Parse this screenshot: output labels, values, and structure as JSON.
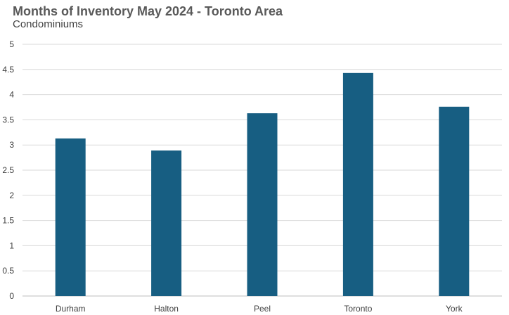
{
  "chart_data": {
    "type": "bar",
    "title": "Months of Inventory May 2024 - Toronto Area",
    "subtitle": "Condominiums",
    "categories": [
      "Durham",
      "Halton",
      "Peel",
      "Toronto",
      "York"
    ],
    "values": [
      3.13,
      2.89,
      3.63,
      4.43,
      3.76
    ],
    "ylim": [
      0,
      5
    ],
    "yticks": [
      "0",
      "0.5",
      "1",
      "1.5",
      "2",
      "2.5",
      "3",
      "3.5",
      "4",
      "4.5",
      "5"
    ],
    "xlabel": "",
    "ylabel": "",
    "grid": true,
    "bar_color": "#175e82",
    "grid_color": "#d9d9d9"
  }
}
